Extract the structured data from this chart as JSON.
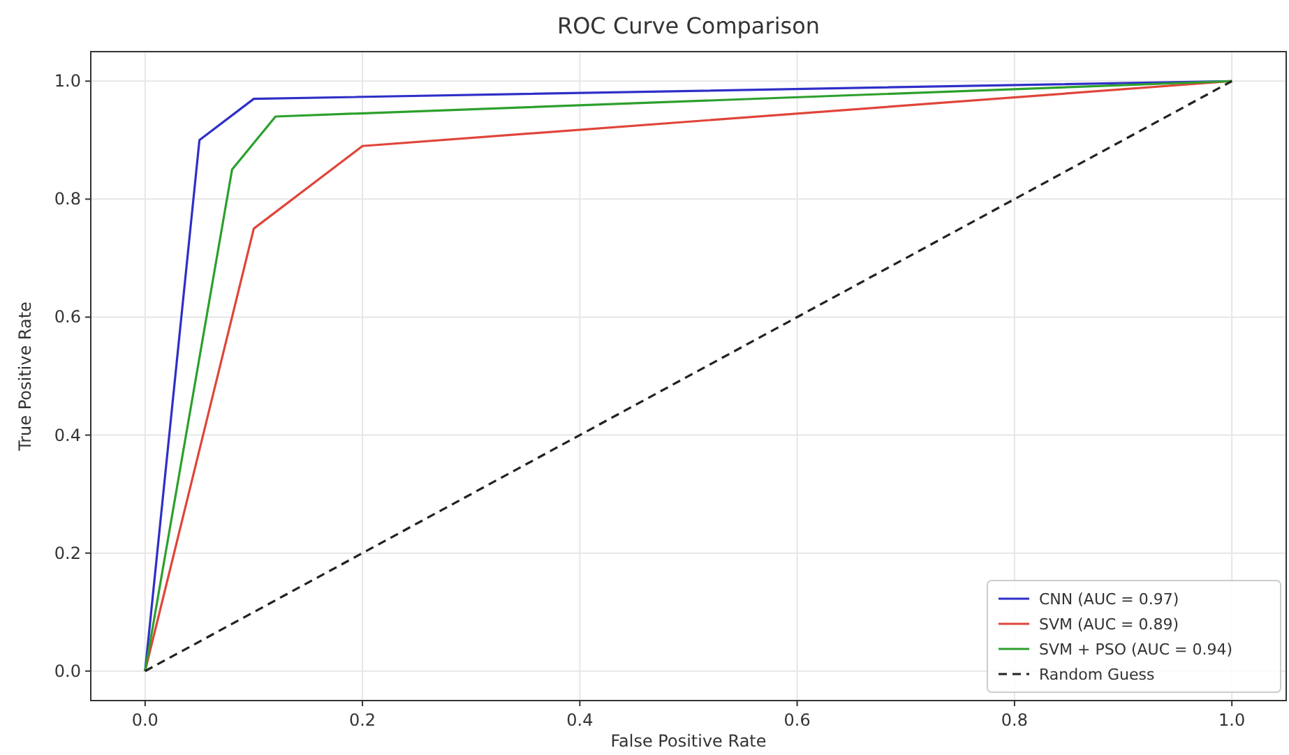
{
  "chart_data": {
    "type": "line",
    "title": "ROC Curve Comparison",
    "xlabel": "False Positive Rate",
    "ylabel": "True Positive Rate",
    "xlim": [
      -0.05,
      1.05
    ],
    "ylim": [
      -0.05,
      1.05
    ],
    "xticks": [
      {
        "value": 0,
        "label": "0.0"
      },
      {
        "value": 0.2,
        "label": "0.2"
      },
      {
        "value": 0.4,
        "label": "0.4"
      },
      {
        "value": 0.6,
        "label": "0.6"
      },
      {
        "value": 0.8,
        "label": "0.8"
      },
      {
        "value": 1,
        "label": "1.0"
      }
    ],
    "yticks": [
      {
        "value": 0,
        "label": "0.0"
      },
      {
        "value": 0.2,
        "label": "0.2"
      },
      {
        "value": 0.4,
        "label": "0.4"
      },
      {
        "value": 0.6,
        "label": "0.6"
      },
      {
        "value": 0.8,
        "label": "0.8"
      },
      {
        "value": 1,
        "label": "1.0"
      }
    ],
    "grid": true,
    "legend": "bottom right",
    "series": [
      {
        "name": "CNN (AUC = 0.97)",
        "color": "#2f2fc8",
        "x": [
          0,
          0.05,
          0.1,
          1
        ],
        "values": [
          0,
          0.9,
          0.97,
          1
        ]
      },
      {
        "name": "SVM (AUC = 0.89)",
        "color": "#e0453a",
        "x": [
          0,
          0.1,
          0.2,
          1
        ],
        "values": [
          0,
          0.75,
          0.89,
          1
        ]
      },
      {
        "name": "SVM + PSO (AUC = 0.94)",
        "color": "#2ca02c",
        "x": [
          0,
          0.08,
          0.12,
          1
        ],
        "values": [
          0,
          0.85,
          0.94,
          1
        ]
      },
      {
        "name": "Random Guess",
        "color": "#222222",
        "line_style": "dashed",
        "x": [
          0,
          1
        ],
        "values": [
          0,
          1
        ]
      }
    ]
  }
}
